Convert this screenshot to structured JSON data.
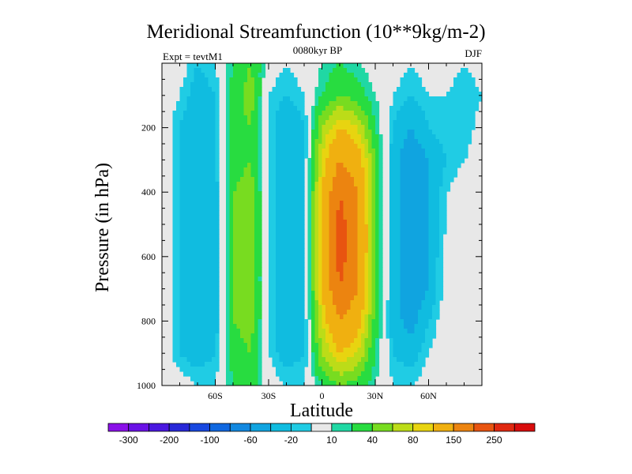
{
  "title": "Meridional Streamfunction (10**9kg/m-2)",
  "left_label": "Expt = tevtM1",
  "center_label": "0080kyr BP",
  "right_label": "DJF",
  "chart_data": {
    "type": "contour",
    "title": "Meridional Streamfunction (10**9kg/m-2)",
    "xlabel": "Latitude",
    "ylabel": "Pressure (in hPa)",
    "xlim": [
      -90,
      90
    ],
    "ylim": [
      1000,
      0
    ],
    "xticks": [
      {
        "value": -60,
        "label": "60S"
      },
      {
        "value": -30,
        "label": "30S"
      },
      {
        "value": 0,
        "label": "0"
      },
      {
        "value": 30,
        "label": "30N"
      },
      {
        "value": 60,
        "label": "60N"
      }
    ],
    "yticks": [
      {
        "value": 200,
        "label": "200"
      },
      {
        "value": 400,
        "label": "400"
      },
      {
        "value": 600,
        "label": "600"
      },
      {
        "value": 800,
        "label": "800"
      },
      {
        "value": 1000,
        "label": "1000"
      }
    ],
    "colorbar": {
      "levels": [
        -300,
        -250,
        -200,
        -150,
        -100,
        -80,
        -60,
        -40,
        -20,
        -10,
        10,
        20,
        40,
        60,
        80,
        100,
        150,
        200,
        250,
        300
      ],
      "labels": [
        "-300",
        "-200",
        "-100",
        "-60",
        "-20",
        "10",
        "40",
        "80",
        "150",
        "250"
      ],
      "colors": [
        "#8a10e8",
        "#6a12e6",
        "#4a18e0",
        "#2828d8",
        "#1848e0",
        "#1068e0",
        "#1288e0",
        "#10a4e0",
        "#10bce0",
        "#20cce4",
        "#e8e8e8",
        "#20d8a4",
        "#28dc40",
        "#78dc20",
        "#bcdc18",
        "#e8d410",
        "#f0b010",
        "#ec8410",
        "#e85410",
        "#e02810",
        "#d80c0c"
      ]
    },
    "fields": {
      "x_columns": [
        -90,
        -80,
        -70,
        -60,
        -50,
        -40,
        -30,
        -20,
        -10,
        0,
        10,
        20,
        30,
        40,
        50,
        60,
        70,
        80,
        90
      ],
      "p_rows": [
        0,
        100,
        200,
        300,
        400,
        500,
        600,
        700,
        800,
        900,
        1000
      ],
      "description_cells": [
        [
          0,
          0,
          -20,
          -10,
          20,
          40,
          0,
          -10,
          0,
          10,
          20,
          10,
          0,
          0,
          -10,
          0,
          0,
          -10,
          0
        ],
        [
          0,
          -10,
          -30,
          -20,
          30,
          50,
          -10,
          -20,
          -10,
          20,
          40,
          30,
          10,
          -10,
          -20,
          -10,
          -10,
          -20,
          -10
        ],
        [
          0,
          -20,
          -40,
          -20,
          30,
          40,
          -10,
          -40,
          -20,
          60,
          100,
          80,
          20,
          -20,
          -40,
          -20,
          -10,
          -20,
          0
        ],
        [
          0,
          -20,
          -40,
          -20,
          30,
          40,
          -10,
          -40,
          -20,
          80,
          150,
          120,
          40,
          -30,
          -60,
          -40,
          -20,
          -10,
          0
        ],
        [
          0,
          -20,
          -40,
          -30,
          40,
          50,
          -10,
          -40,
          -20,
          100,
          200,
          150,
          40,
          -30,
          -60,
          -40,
          -10,
          0,
          0
        ],
        [
          0,
          -20,
          -40,
          -30,
          40,
          50,
          -10,
          -40,
          -20,
          100,
          220,
          160,
          40,
          -30,
          -60,
          -40,
          -10,
          0,
          0
        ],
        [
          0,
          -20,
          -40,
          -30,
          40,
          50,
          -10,
          -40,
          -20,
          100,
          220,
          160,
          40,
          -30,
          -60,
          -40,
          0,
          0,
          0
        ],
        [
          0,
          -20,
          -40,
          -30,
          40,
          50,
          -10,
          -40,
          -20,
          100,
          200,
          150,
          40,
          -30,
          -60,
          -40,
          0,
          0,
          0
        ],
        [
          0,
          -20,
          -40,
          -30,
          40,
          50,
          -10,
          -40,
          -20,
          80,
          150,
          120,
          30,
          -30,
          -50,
          -20,
          0,
          0,
          0
        ],
        [
          0,
          -20,
          -30,
          -20,
          30,
          40,
          -10,
          -30,
          -20,
          60,
          100,
          80,
          20,
          -20,
          -30,
          -10,
          0,
          0,
          0
        ],
        [
          0,
          0,
          -10,
          -10,
          20,
          30,
          0,
          -10,
          -10,
          20,
          40,
          30,
          10,
          -10,
          -10,
          0,
          0,
          0,
          0
        ]
      ]
    }
  }
}
